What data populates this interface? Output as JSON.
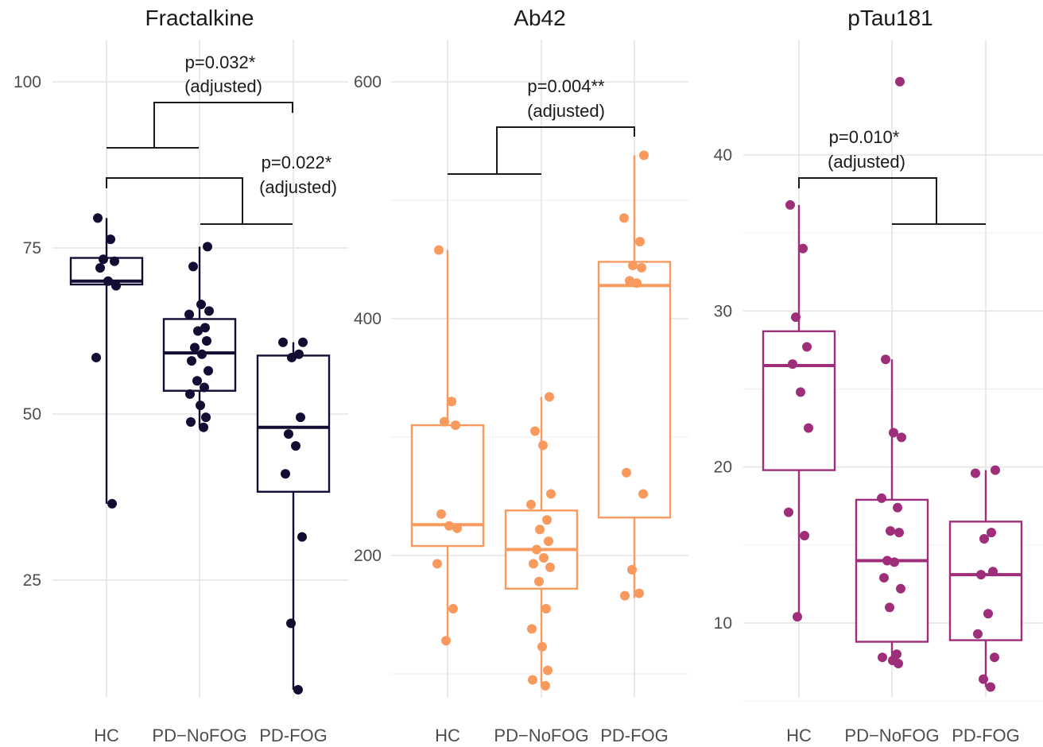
{
  "chart_data": [
    {
      "type": "box",
      "title": "Fractalkine",
      "categories": [
        "HC",
        "PD−NoFOG",
        "PD-FOG"
      ],
      "yticks": [
        "25",
        "50",
        "75",
        "100"
      ],
      "color": "#140c33",
      "boxes": [
        {
          "low": 36.5,
          "q1": 69.5,
          "median": 70.0,
          "q3": 73.5,
          "high": 79.5
        },
        {
          "low": 48.0,
          "q1": 53.5,
          "median": 59.2,
          "q3": 64.3,
          "high": 75.2
        },
        {
          "low": 8.5,
          "q1": 38.3,
          "median": 48.0,
          "q3": 58.8,
          "high": 60.8
        }
      ],
      "points": [
        [
          79.5,
          76.3,
          73.3,
          73.0,
          72.0,
          70.0,
          69.3,
          58.5,
          36.5
        ],
        [
          75.2,
          72.2,
          66.5,
          65.5,
          65.0,
          63.0,
          62.5,
          61.0,
          60.0,
          59.0,
          58.0,
          56.5,
          55.0,
          54.0,
          53.0,
          51.3,
          49.5,
          48.8,
          48.0
        ],
        [
          60.8,
          60.8,
          59.0,
          58.5,
          49.5,
          47.0,
          45.2,
          41.0,
          31.5,
          18.5,
          8.5
        ]
      ],
      "annotations": [
        {
          "label": "p=0.032*",
          "note": "(adjusted)"
        },
        {
          "label": "p=0.022*",
          "note": "(adjusted)"
        }
      ]
    },
    {
      "type": "box",
      "title": "Ab42",
      "categories": [
        "HC",
        "PD−NoFOG",
        "PD-FOG"
      ],
      "yticks": [
        "200",
        "400",
        "600"
      ],
      "color": "#f89a5e",
      "boxes": [
        {
          "low": 128,
          "q1": 208,
          "median": 226,
          "q3": 310,
          "high": 458
        },
        {
          "low": 90,
          "q1": 172,
          "median": 205,
          "q3": 238,
          "high": 334
        },
        {
          "low": 164,
          "q1": 232,
          "median": 428,
          "q3": 448,
          "high": 538
        }
      ],
      "points": [
        [
          458,
          330,
          313,
          310,
          235,
          225,
          223,
          193,
          155,
          128
        ],
        [
          334,
          305,
          293,
          252,
          243,
          230,
          222,
          212,
          205,
          198,
          193,
          190,
          178,
          155,
          138,
          123,
          103,
          95,
          90
        ],
        [
          538,
          485,
          465,
          445,
          443,
          432,
          430,
          270,
          252,
          188,
          168,
          166
        ]
      ],
      "annotations": [
        {
          "label": "p=0.004**",
          "note": "(adjusted)"
        }
      ]
    },
    {
      "type": "box",
      "title": "pTau181",
      "categories": [
        "HC",
        "PD−NoFOG",
        "PD-FOG"
      ],
      "yticks": [
        "10",
        "20",
        "30",
        "40"
      ],
      "color": "#9e2e7a",
      "boxes": [
        {
          "low": 10.4,
          "q1": 19.8,
          "median": 26.5,
          "q3": 28.7,
          "high": 36.8
        },
        {
          "low": 7.4,
          "q1": 8.8,
          "median": 14.0,
          "q3": 17.9,
          "high": 26.9
        },
        {
          "low": 5.9,
          "q1": 8.9,
          "median": 13.1,
          "q3": 16.5,
          "high": 19.8
        }
      ],
      "points": [
        [
          36.8,
          34.0,
          29.6,
          27.7,
          26.6,
          24.8,
          22.5,
          17.1,
          15.6,
          10.4
        ],
        [
          44.7,
          26.9,
          22.2,
          21.9,
          18.0,
          17.4,
          15.9,
          15.8,
          14.0,
          13.9,
          12.9,
          12.2,
          11.0,
          8.0,
          7.8,
          7.6,
          7.4
        ],
        [
          19.8,
          19.6,
          15.8,
          15.4,
          13.3,
          13.1,
          10.6,
          9.3,
          7.8,
          6.4,
          5.9
        ]
      ],
      "annotations": [
        {
          "label": "p=0.010*",
          "note": "(adjusted)"
        }
      ]
    }
  ]
}
